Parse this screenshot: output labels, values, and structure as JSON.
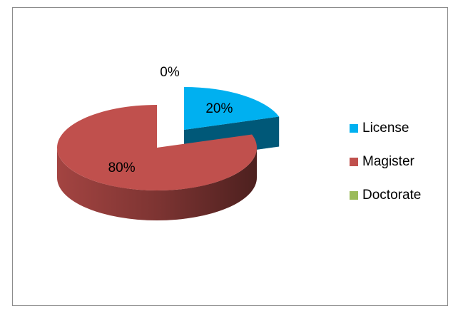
{
  "chart_data": {
    "type": "pie",
    "categories": [
      "License",
      "Magister",
      "Doctorate"
    ],
    "values": [
      20,
      80,
      0
    ],
    "value_labels": [
      "20%",
      "80%",
      "0%"
    ],
    "colors": [
      "#00b0f0",
      "#c0504d",
      "#9bbb59"
    ],
    "legend": "right"
  }
}
